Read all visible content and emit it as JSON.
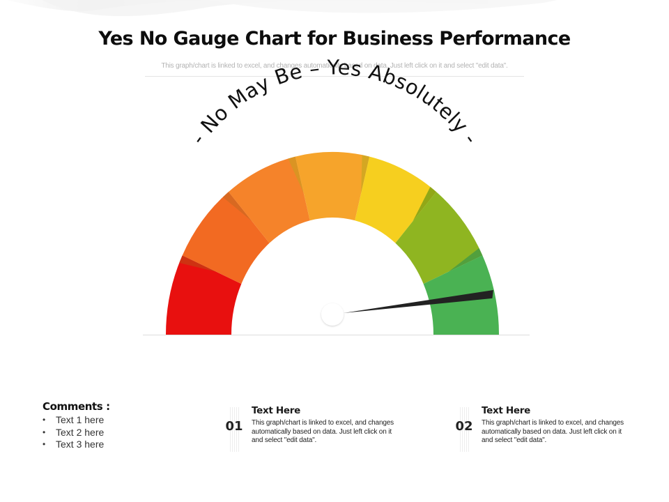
{
  "header": {
    "title": "Yes No Gauge Chart for Business Performance",
    "subtitle": "This graph/chart is linked to excel, and changes automatically based on data. Just left click on it and select \"edit data\"."
  },
  "chart_data": {
    "type": "gauge",
    "title": "Yes No Gauge Chart for Business Performance",
    "arc_label": "- No May Be – Yes Absolutely -",
    "segments": [
      {
        "index": 1,
        "color": "#e8100f",
        "shade": "#c63d14"
      },
      {
        "index": 2,
        "color": "#f26a22",
        "shade": "#cf6a22"
      },
      {
        "index": 3,
        "color": "#f5832a",
        "shade": "#d09a22"
      },
      {
        "index": 4,
        "color": "#f6a42b",
        "shade": "#c8a820"
      },
      {
        "index": 5,
        "color": "#f6cf1f",
        "shade": "#6f9a15"
      },
      {
        "index": 6,
        "color": "#8fb521",
        "shade": "#3d9a47"
      },
      {
        "index": 7,
        "color": "#4ab253",
        "shade": null
      }
    ],
    "segment_count": 7,
    "needle": {
      "value_fraction": 0.96,
      "color": "#222222",
      "position": "Yes Absolutely"
    },
    "range_labels": [
      "No",
      "May Be",
      "Yes",
      "Absolutely"
    ]
  },
  "comments": {
    "heading": "Comments :",
    "items": [
      "Text 1 here",
      "Text 2 here",
      "Text 3 here"
    ]
  },
  "cards": [
    {
      "number": "01",
      "heading": "Text Here",
      "body": "This graph/chart is linked to excel, and changes automatically based on data. Just left click on it and select \"edit data\"."
    },
    {
      "number": "02",
      "heading": "Text Here",
      "body": "This graph/chart is linked to excel, and changes automatically based on data. Just left click on it and select \"edit data\"."
    }
  ]
}
